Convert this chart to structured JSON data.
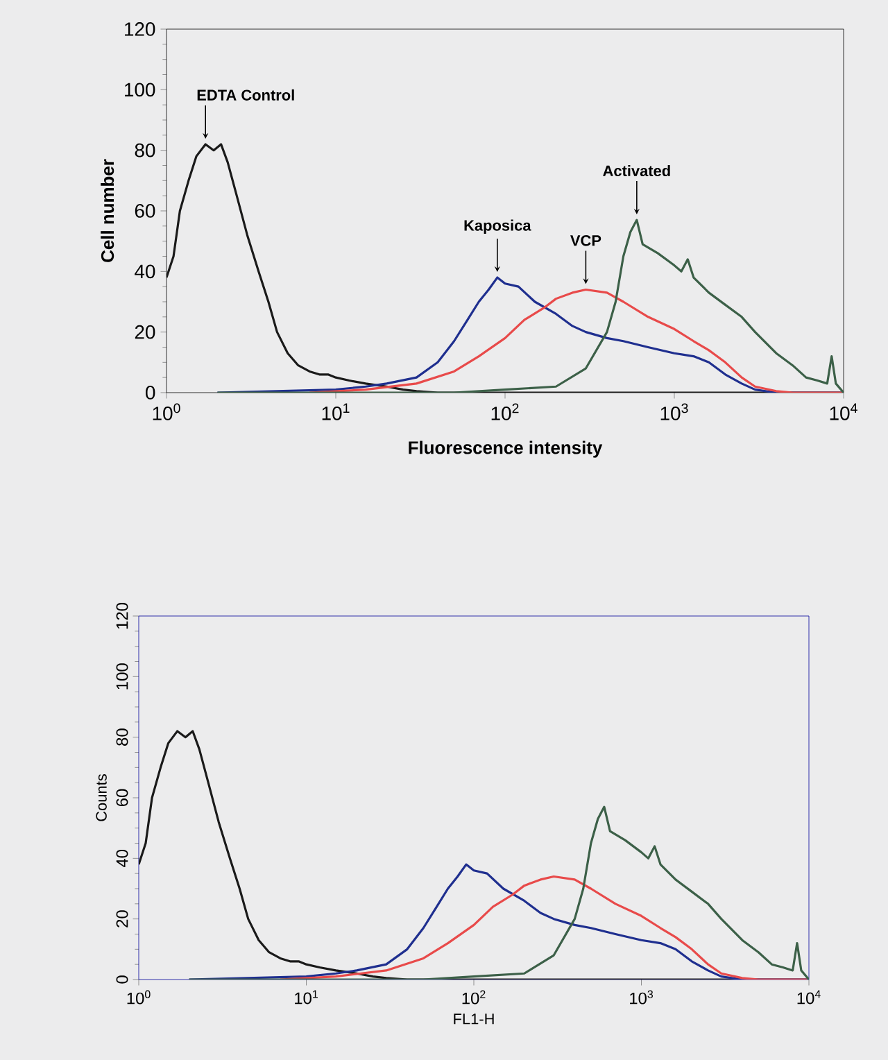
{
  "chart_data": [
    {
      "type": "line",
      "xlabel": "Fluorescence intensity",
      "ylabel": "Cell number",
      "log": "x",
      "grid": false,
      "marker": "none",
      "line_style": "solid",
      "xlim": [
        1,
        10000
      ],
      "ylim": [
        0,
        120
      ],
      "xticks": [
        {
          "value": 1,
          "label": "10$^{0}$"
        },
        {
          "value": 10,
          "label": "10$^{1}$"
        },
        {
          "value": 100,
          "label": "10$^{2}$"
        },
        {
          "value": 1000,
          "label": "10$^{3}$"
        },
        {
          "value": 10000,
          "label": "10$^{4}$"
        }
      ],
      "yticks": [
        0,
        20,
        40,
        60,
        80,
        100,
        120
      ],
      "series": [
        {
          "name": "EDTA Control",
          "color": "#1a1a1a",
          "x": [
            1,
            1.1,
            1.2,
            1.35,
            1.5,
            1.7,
            1.9,
            2.1,
            2.3,
            2.6,
            3,
            3.5,
            4,
            4.5,
            5.2,
            6,
            7,
            8,
            9,
            10,
            12,
            15,
            20,
            25,
            30,
            40,
            100,
            10000
          ],
          "values": [
            38,
            45,
            60,
            70,
            78,
            82,
            80,
            82,
            76,
            65,
            52,
            40,
            30,
            20,
            13,
            9,
            7,
            6,
            6,
            5,
            4,
            3,
            2,
            1,
            0.5,
            0,
            0,
            0
          ]
        },
        {
          "name": "Kaposica",
          "color": "#1f2f8f",
          "x": [
            2,
            10,
            15,
            20,
            30,
            40,
            50,
            60,
            70,
            80,
            90,
            100,
            120,
            150,
            200,
            250,
            300,
            400,
            500,
            700,
            1000,
            1300,
            1600,
            2000,
            2500,
            3000,
            4000,
            10000
          ],
          "values": [
            0,
            1,
            2,
            3,
            5,
            10,
            17,
            24,
            30,
            34,
            38,
            36,
            35,
            30,
            26,
            22,
            20,
            18,
            17,
            15,
            13,
            12,
            10,
            6,
            3,
            1,
            0,
            0
          ]
        },
        {
          "name": "VCP",
          "color": "#e84a4a",
          "x": [
            7,
            15,
            30,
            50,
            70,
            100,
            130,
            170,
            200,
            250,
            300,
            400,
            500,
            700,
            1000,
            1300,
            1600,
            2000,
            2500,
            3000,
            4000,
            5000,
            10000
          ],
          "values": [
            0,
            1,
            3,
            7,
            12,
            18,
            24,
            28,
            31,
            33,
            34,
            33,
            30,
            25,
            21,
            17,
            14,
            10,
            5,
            2,
            0.5,
            0,
            0
          ]
        },
        {
          "name": "Activated",
          "color": "#3c6048",
          "x": [
            2,
            10,
            50,
            100,
            200,
            300,
            400,
            450,
            500,
            550,
            600,
            650,
            800,
            1000,
            1100,
            1200,
            1300,
            1600,
            2000,
            2500,
            3000,
            4000,
            5000,
            6000,
            7000,
            8000,
            8500,
            9000,
            10000
          ],
          "values": [
            0,
            0,
            0,
            1,
            2,
            8,
            20,
            30,
            45,
            53,
            57,
            49,
            46,
            42,
            40,
            44,
            38,
            33,
            29,
            25,
            20,
            13,
            9,
            5,
            4,
            3,
            12,
            3,
            0
          ]
        }
      ]
    },
    {
      "type": "line",
      "xlabel": "FL1-H",
      "ylabel": "Counts",
      "log": "x",
      "grid": false,
      "marker": "none",
      "line_style": "solid",
      "xlim": [
        1,
        10000
      ],
      "ylim": [
        0,
        120
      ],
      "xticks": [
        {
          "value": 1,
          "label": "10$^{0}$"
        },
        {
          "value": 10,
          "label": "10$^{1}$"
        },
        {
          "value": 100,
          "label": "10$^{2}$"
        },
        {
          "value": 1000,
          "label": "10$^{3}$"
        },
        {
          "value": 10000,
          "label": "10$^{4}$"
        }
      ],
      "yticks": [
        0,
        20,
        40,
        60,
        80,
        100,
        120
      ],
      "series": [
        {
          "color": "#1a1a1a",
          "x": [
            1,
            1.1,
            1.2,
            1.35,
            1.5,
            1.7,
            1.9,
            2.1,
            2.3,
            2.6,
            3,
            3.5,
            4,
            4.5,
            5.2,
            6,
            7,
            8,
            9,
            10,
            12,
            15,
            20,
            25,
            30,
            40,
            100,
            10000
          ],
          "values": [
            38,
            45,
            60,
            70,
            78,
            82,
            80,
            82,
            76,
            65,
            52,
            40,
            30,
            20,
            13,
            9,
            7,
            6,
            6,
            5,
            4,
            3,
            2,
            1,
            0.5,
            0,
            0,
            0
          ]
        },
        {
          "color": "#1f2f8f",
          "x": [
            2,
            10,
            15,
            20,
            30,
            40,
            50,
            60,
            70,
            80,
            90,
            100,
            120,
            150,
            200,
            250,
            300,
            400,
            500,
            700,
            1000,
            1300,
            1600,
            2000,
            2500,
            3000,
            4000,
            10000
          ],
          "values": [
            0,
            1,
            2,
            3,
            5,
            10,
            17,
            24,
            30,
            34,
            38,
            36,
            35,
            30,
            26,
            22,
            20,
            18,
            17,
            15,
            13,
            12,
            10,
            6,
            3,
            1,
            0,
            0
          ]
        },
        {
          "color": "#e84a4a",
          "x": [
            7,
            15,
            30,
            50,
            70,
            100,
            130,
            170,
            200,
            250,
            300,
            400,
            500,
            700,
            1000,
            1300,
            1600,
            2000,
            2500,
            3000,
            4000,
            5000,
            10000
          ],
          "values": [
            0,
            1,
            3,
            7,
            12,
            18,
            24,
            28,
            31,
            33,
            34,
            33,
            30,
            25,
            21,
            17,
            14,
            10,
            5,
            2,
            0.5,
            0,
            0
          ]
        },
        {
          "color": "#3c6048",
          "x": [
            2,
            10,
            50,
            100,
            200,
            300,
            400,
            450,
            500,
            550,
            600,
            650,
            800,
            1000,
            1100,
            1200,
            1300,
            1600,
            2000,
            2500,
            3000,
            4000,
            5000,
            6000,
            7000,
            8000,
            8500,
            9000,
            10000
          ],
          "values": [
            0,
            0,
            0,
            1,
            2,
            8,
            20,
            30,
            45,
            53,
            57,
            49,
            46,
            42,
            40,
            44,
            38,
            33,
            29,
            25,
            20,
            13,
            9,
            5,
            4,
            3,
            12,
            3,
            0
          ]
        }
      ]
    }
  ]
}
